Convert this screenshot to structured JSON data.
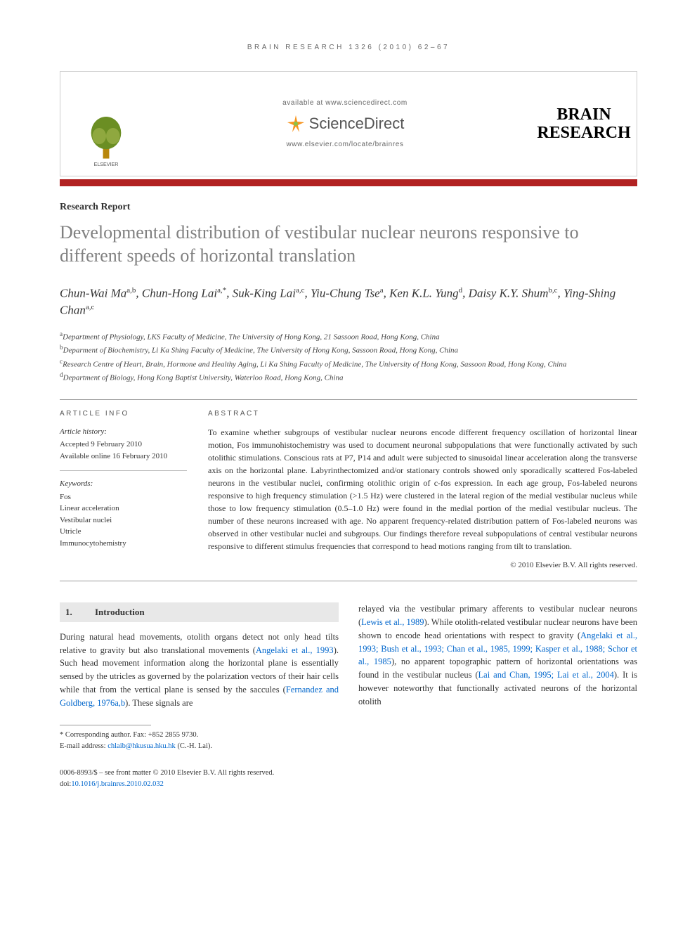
{
  "running_header": "BRAIN RESEARCH 1326 (2010) 62–67",
  "banner": {
    "available_at": "available at www.sciencedirect.com",
    "sciencedirect": "ScienceDirect",
    "elsevier_url": "www.elsevier.com/locate/brainres",
    "journal_logo_line1": "BRAIN",
    "journal_logo_line2": "RESEARCH",
    "publisher_label": "ELSEVIER"
  },
  "section_label": "Research Report",
  "title": "Developmental distribution of vestibular nuclear neurons responsive to different speeds of horizontal translation",
  "authors_html": "Chun-Wai Ma<sup>a,b</sup>, Chun-Hong Lai<sup>a,*</sup>, Suk-King Lai<sup>a,c</sup>, Yiu-Chung Tse<sup>a</sup>, Ken K.L. Yung<sup>d</sup>, Daisy K.Y. Shum<sup>b,c</sup>, Ying-Shing Chan<sup>a,c</sup>",
  "affiliations": [
    {
      "sup": "a",
      "text": "Department of Physiology, LKS Faculty of Medicine, The University of Hong Kong, 21 Sassoon Road, Hong Kong, China"
    },
    {
      "sup": "b",
      "text": "Deparment of Biochemistry, Li Ka Shing Faculty of Medicine, The University of Hong Kong, Sassoon Road, Hong Kong, China"
    },
    {
      "sup": "c",
      "text": "Research Centre of Heart, Brain, Hormone and Healthy Aging, Li Ka Shing Faculty of Medicine, The University of Hong Kong, Sassoon Road, Hong Kong, China"
    },
    {
      "sup": "d",
      "text": "Department of Biology, Hong Kong Baptist University, Waterloo Road, Hong Kong, China"
    }
  ],
  "article_info": {
    "heading": "ARTICLE INFO",
    "history_label": "Article history:",
    "accepted": "Accepted 9 February 2010",
    "online": "Available online 16 February 2010",
    "keywords_label": "Keywords:",
    "keywords": [
      "Fos",
      "Linear acceleration",
      "Vestibular nuclei",
      "Utricle",
      "Immunocytohemistry"
    ]
  },
  "abstract": {
    "heading": "ABSTRACT",
    "text": "To examine whether subgroups of vestibular nuclear neurons encode different frequency oscillation of horizontal linear motion, Fos immunohistochemistry was used to document neuronal subpopulations that were functionally activated by such otolithic stimulations. Conscious rats at P7, P14 and adult were subjected to sinusoidal linear acceleration along the transverse axis on the horizontal plane. Labyrinthectomized and/or stationary controls showed only sporadically scattered Fos-labeled neurons in the vestibular nuclei, confirming otolithic origin of c-fos expression. In each age group, Fos-labeled neurons responsive to high frequency stimulation (>1.5 Hz) were clustered in the lateral region of the medial vestibular nucleus while those to low frequency stimulation (0.5–1.0 Hz) were found in the medial portion of the medial vestibular nucleus. The number of these neurons increased with age. No apparent frequency-related distribution pattern of Fos-labeled neurons was observed in other vestibular nuclei and subgroups. Our findings therefore reveal subpopulations of central vestibular neurons responsive to different stimulus frequencies that correspond to head motions ranging from tilt to translation.",
    "copyright": "© 2010 Elsevier B.V. All rights reserved."
  },
  "intro": {
    "number": "1.",
    "heading": "Introduction",
    "col1": "During natural head movements, otolith organs detect not only head tilts relative to gravity but also translational movements (Angelaki et al., 1993). Such head movement information along the horizontal plane is essentially sensed by the utricles as governed by the polarization vectors of their hair cells while that from the vertical plane is sensed by the saccules (Fernandez and Goldberg, 1976a,b). These signals are",
    "col2": "relayed via the vestibular primary afferents to vestibular nuclear neurons (Lewis et al., 1989). While otolith-related vestibular nuclear neurons have been shown to encode head orientations with respect to gravity (Angelaki et al., 1993; Bush et al., 1993; Chan et al., 1985, 1999; Kasper et al., 1988; Schor et al., 1985), no apparent topographic pattern of horizontal orientations was found in the vestibular nucleus (Lai and Chan, 1995; Lai et al., 2004). It is however noteworthy that functionally activated neurons of the horizontal otolith",
    "refs_col1": [
      "Angelaki et al., 1993",
      "Fernandez and Goldberg, 1976a,b"
    ],
    "refs_col2": [
      "Lewis et al., 1989",
      "Angelaki et al., 1993; Bush et al., 1993; Chan et al., 1985, 1999; Kasper et al., 1988; Schor et al., 1985",
      "Lai and Chan, 1995; Lai et al., 2004"
    ]
  },
  "footnotes": {
    "corresponding": "* Corresponding author. Fax: +852 2855 9730.",
    "email_label": "E-mail address: ",
    "email": "chlaib@hkusua.hku.hk",
    "email_name": " (C.-H. Lai)."
  },
  "footer": {
    "line1": "0006-8993/$ – see front matter © 2010 Elsevier B.V. All rights reserved.",
    "doi_prefix": "doi:",
    "doi": "10.1016/j.brainres.2010.02.032"
  },
  "colors": {
    "bar": "#b22222",
    "title_gray": "#808080",
    "link_blue": "#0066cc",
    "sd_orange": "#f7941e",
    "sd_green": "#8bc34a"
  }
}
